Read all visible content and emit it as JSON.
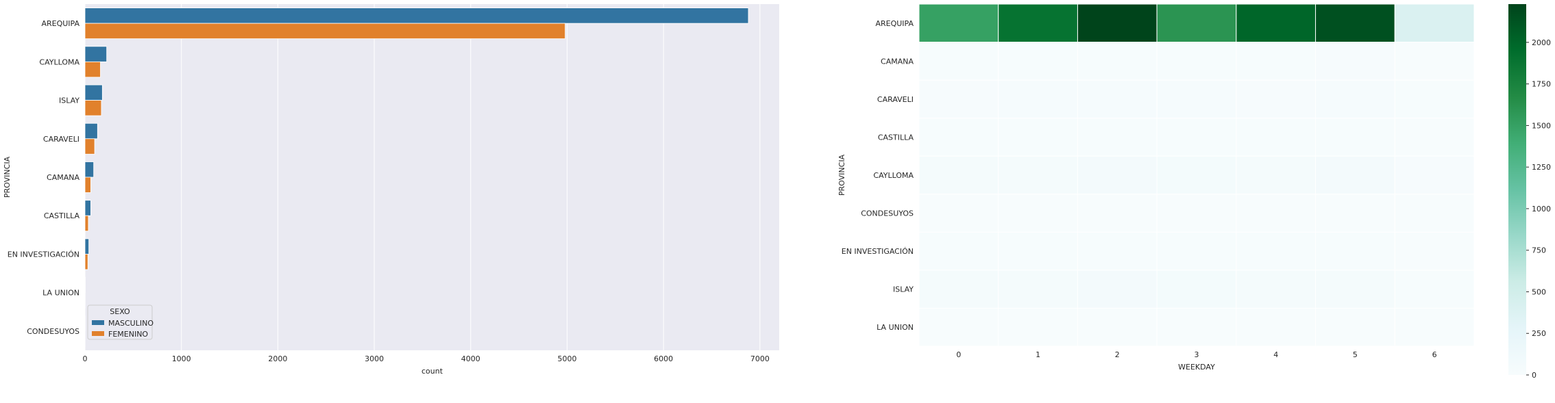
{
  "chart_data": [
    {
      "type": "bar",
      "orientation": "horizontal",
      "xlabel": "count",
      "ylabel": "PROVINCIA",
      "xlim": [
        0,
        7200
      ],
      "xticks": [
        0,
        1000,
        2000,
        3000,
        4000,
        5000,
        6000,
        7000
      ],
      "grid": true,
      "categories": [
        "AREQUIPA",
        "CAYLLOMA",
        "ISLAY",
        "CARAVELI",
        "CAMANA",
        "CASTILLA",
        "EN INVESTIGACIÓN",
        "LA UNION",
        "CONDESUYOS"
      ],
      "legend": {
        "title": "SEXO",
        "placement": "bottom-left"
      },
      "series": [
        {
          "name": "MASCULINO",
          "color": "#3274a1",
          "values": [
            6880,
            225,
            180,
            130,
            90,
            60,
            40,
            3,
            2
          ]
        },
        {
          "name": "FEMENINO",
          "color": "#e1812c",
          "values": [
            4980,
            160,
            170,
            100,
            60,
            35,
            30,
            2,
            1
          ]
        }
      ]
    },
    {
      "type": "heatmap",
      "xlabel": "WEEKDAY",
      "ylabel": "PROVINCIA",
      "x": [
        "0",
        "1",
        "2",
        "3",
        "4",
        "5",
        "6"
      ],
      "y": [
        "AREQUIPA",
        "CAMANA",
        "CARAVELI",
        "CASTILLA",
        "CAYLLOMA",
        "CONDESUYOS",
        "EN INVESTIGACIÓN",
        "ISLAY",
        "LA UNION"
      ],
      "values": [
        [
          1500,
          1900,
          2230,
          1600,
          2000,
          2150,
          400
        ],
        [
          15,
          12,
          18,
          14,
          16,
          20,
          5
        ],
        [
          20,
          25,
          30,
          28,
          22,
          30,
          8
        ],
        [
          10,
          12,
          15,
          11,
          9,
          14,
          3
        ],
        [
          50,
          45,
          60,
          55,
          40,
          60,
          20
        ],
        [
          1,
          0,
          1,
          0,
          1,
          0,
          0
        ],
        [
          8,
          10,
          12,
          9,
          11,
          10,
          3
        ],
        [
          45,
          50,
          60,
          55,
          48,
          52,
          15
        ],
        [
          1,
          1,
          0,
          1,
          0,
          1,
          0
        ]
      ],
      "vmin": 0,
      "vmax": 2230,
      "colormap": "BuGn",
      "colorbar_ticks": [
        0,
        250,
        500,
        750,
        1000,
        1250,
        1500,
        1750,
        2000
      ]
    }
  ]
}
